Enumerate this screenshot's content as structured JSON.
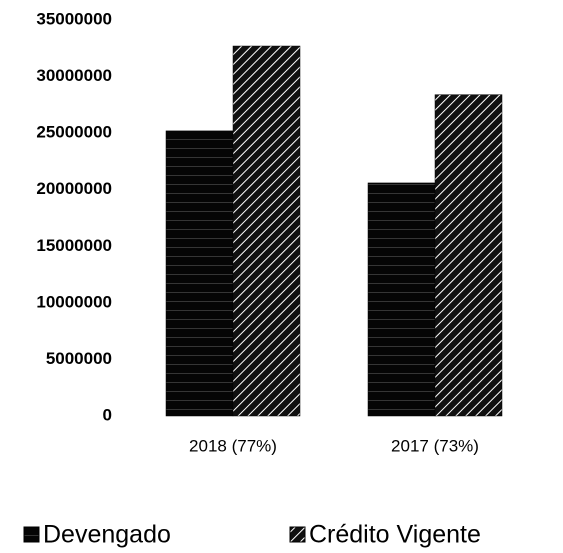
{
  "chart_data": {
    "type": "bar",
    "categories": [
      "2018 (77%)",
      "2017 (73%)"
    ],
    "series": [
      {
        "name": "Devengado",
        "color": "#000000",
        "pattern": "horizontal-lines",
        "values": [
          25200000,
          20600000
        ]
      },
      {
        "name": "Crédito Vigente",
        "color": "#000000",
        "pattern": "diagonal-hatch",
        "values": [
          32700000,
          28400000
        ]
      }
    ],
    "ylim": [
      0,
      35000000
    ],
    "yticks": [
      0,
      5000000,
      10000000,
      15000000,
      20000000,
      25000000,
      30000000,
      35000000
    ],
    "grid": false
  }
}
